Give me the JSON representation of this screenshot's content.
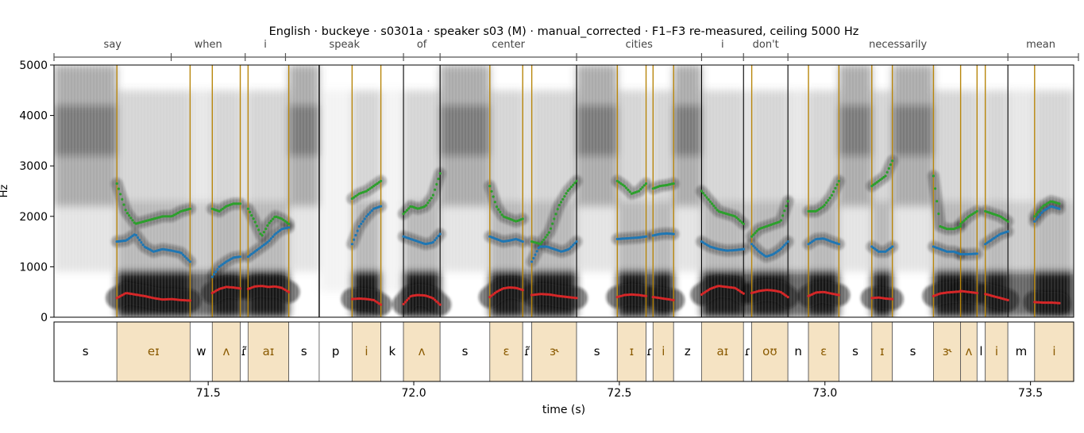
{
  "chart_data": {
    "type": "spectrogram",
    "title": "English · buckeye · s0301a · speaker s03 (M) · manual_corrected · F1–F3 re-measured, ceiling 5000 Hz",
    "xlabel": "time (s)",
    "ylabel": "Hz",
    "xlim": [
      71.125,
      73.605
    ],
    "ylim": [
      0,
      5000
    ],
    "y_ticks": [
      "0",
      "1000",
      "2000",
      "3000",
      "4000",
      "5000"
    ],
    "x_ticks": [
      "71.5",
      "72.0",
      "72.5",
      "73.0",
      "73.5"
    ],
    "x_tick_values": [
      71.5,
      72.0,
      72.5,
      73.0,
      73.5
    ],
    "y_tick_values": [
      0,
      1000,
      2000,
      3000,
      4000,
      5000
    ],
    "words": [
      {
        "label": "say",
        "start": 71.125,
        "end": 71.41
      },
      {
        "label": "when",
        "start": 71.41,
        "end": 71.59
      },
      {
        "label": "i",
        "start": 71.59,
        "end": 71.688
      },
      {
        "label": "speak",
        "start": 71.688,
        "end": 71.975
      },
      {
        "label": "of",
        "start": 71.975,
        "end": 72.064
      },
      {
        "label": "center",
        "start": 72.064,
        "end": 72.396
      },
      {
        "label": "cities",
        "start": 72.396,
        "end": 72.7
      },
      {
        "label": "i",
        "start": 72.7,
        "end": 72.802
      },
      {
        "label": "don't",
        "start": 72.802,
        "end": 72.91
      },
      {
        "label": "necessarily",
        "start": 72.91,
        "end": 73.445
      },
      {
        "label": "mean",
        "start": 73.445,
        "end": 73.605
      }
    ],
    "phones": [
      {
        "label": "s",
        "start": 71.125,
        "end": 71.278,
        "vowel": false
      },
      {
        "label": "eɪ",
        "start": 71.278,
        "end": 71.456,
        "vowel": true
      },
      {
        "label": "w",
        "start": 71.456,
        "end": 71.51,
        "vowel": false
      },
      {
        "label": "ʌ",
        "start": 71.51,
        "end": 71.578,
        "vowel": true
      },
      {
        "label": "ɾ̃",
        "start": 71.578,
        "end": 71.597,
        "vowel": false
      },
      {
        "label": "aɪ",
        "start": 71.597,
        "end": 71.696,
        "vowel": true
      },
      {
        "label": "s",
        "start": 71.696,
        "end": 71.77,
        "vowel": false
      },
      {
        "label": "p",
        "start": 71.77,
        "end": 71.85,
        "vowel": false
      },
      {
        "label": "i",
        "start": 71.85,
        "end": 71.92,
        "vowel": true
      },
      {
        "label": "k",
        "start": 71.92,
        "end": 71.975,
        "vowel": false
      },
      {
        "label": "ʌ",
        "start": 71.975,
        "end": 72.064,
        "vowel": true
      },
      {
        "label": "s",
        "start": 72.064,
        "end": 72.185,
        "vowel": false
      },
      {
        "label": "ɛ",
        "start": 72.185,
        "end": 72.265,
        "vowel": true
      },
      {
        "label": "ɾ̃",
        "start": 72.265,
        "end": 72.287,
        "vowel": false
      },
      {
        "label": "ɝ",
        "start": 72.287,
        "end": 72.396,
        "vowel": true
      },
      {
        "label": "s",
        "start": 72.396,
        "end": 72.495,
        "vowel": false
      },
      {
        "label": "ɪ",
        "start": 72.495,
        "end": 72.565,
        "vowel": true
      },
      {
        "label": "ɾ",
        "start": 72.565,
        "end": 72.582,
        "vowel": false
      },
      {
        "label": "i",
        "start": 72.582,
        "end": 72.632,
        "vowel": true
      },
      {
        "label": "z",
        "start": 72.632,
        "end": 72.7,
        "vowel": false
      },
      {
        "label": "aɪ",
        "start": 72.7,
        "end": 72.802,
        "vowel": true
      },
      {
        "label": "ɾ",
        "start": 72.802,
        "end": 72.822,
        "vowel": false
      },
      {
        "label": "oʊ",
        "start": 72.822,
        "end": 72.91,
        "vowel": true
      },
      {
        "label": "n",
        "start": 72.91,
        "end": 72.96,
        "vowel": false
      },
      {
        "label": "ɛ",
        "start": 72.96,
        "end": 73.034,
        "vowel": true
      },
      {
        "label": "s",
        "start": 73.034,
        "end": 73.114,
        "vowel": false
      },
      {
        "label": "ɪ",
        "start": 73.114,
        "end": 73.164,
        "vowel": true
      },
      {
        "label": "s",
        "start": 73.164,
        "end": 73.264,
        "vowel": false
      },
      {
        "label": "ɝ",
        "start": 73.264,
        "end": 73.33,
        "vowel": true
      },
      {
        "label": "ʌ",
        "start": 73.33,
        "end": 73.37,
        "vowel": true
      },
      {
        "label": "l",
        "start": 73.37,
        "end": 73.39,
        "vowel": false
      },
      {
        "label": "i",
        "start": 73.39,
        "end": 73.445,
        "vowel": true
      },
      {
        "label": "m",
        "start": 73.445,
        "end": 73.51,
        "vowel": false
      },
      {
        "label": "i",
        "start": 73.51,
        "end": 73.605,
        "vowel": true
      }
    ],
    "series": [
      {
        "key": "F1",
        "color": "#d62728",
        "segments": [
          {
            "start": 71.278,
            "end": 71.456,
            "values": [
              380,
              480,
              450,
              420,
              380,
              350,
              360,
              340,
              330
            ]
          },
          {
            "start": 71.51,
            "end": 71.578,
            "values": [
              480,
              560,
              600,
              590,
              570
            ]
          },
          {
            "start": 71.597,
            "end": 71.696,
            "values": [
              560,
              610,
              620,
              600,
              610,
              580,
              500
            ]
          },
          {
            "start": 71.85,
            "end": 71.92,
            "values": [
              360,
              370,
              360,
              340,
              250
            ]
          },
          {
            "start": 71.975,
            "end": 72.064,
            "values": [
              260,
              420,
              440,
              430,
              380,
              250
            ]
          },
          {
            "start": 72.185,
            "end": 72.265,
            "values": [
              400,
              500,
              570,
              590,
              580,
              540
            ]
          },
          {
            "start": 72.287,
            "end": 72.396,
            "values": [
              440,
              460,
              450,
              420,
              400,
              380
            ]
          },
          {
            "start": 72.495,
            "end": 72.565,
            "values": [
              400,
              440,
              450,
              440,
              420
            ]
          },
          {
            "start": 72.582,
            "end": 72.632,
            "values": [
              400,
              380,
              360,
              340
            ]
          },
          {
            "start": 72.7,
            "end": 72.802,
            "values": [
              450,
              560,
              620,
              600,
              580,
              470
            ]
          },
          {
            "start": 72.822,
            "end": 72.91,
            "values": [
              480,
              520,
              540,
              530,
              500,
              400
            ]
          },
          {
            "start": 72.96,
            "end": 73.034,
            "values": [
              420,
              490,
              500,
              470,
              440
            ]
          },
          {
            "start": 73.114,
            "end": 73.164,
            "values": [
              380,
              390,
              370,
              360
            ]
          },
          {
            "start": 73.264,
            "end": 73.33,
            "values": [
              420,
              470,
              490,
              500,
              510
            ]
          },
          {
            "start": 73.33,
            "end": 73.37,
            "values": [
              520,
              500,
              480
            ]
          },
          {
            "start": 73.39,
            "end": 73.445,
            "values": [
              460,
              420,
              380,
              340
            ]
          },
          {
            "start": 73.51,
            "end": 73.57,
            "values": [
              300,
              290,
              290,
              280
            ]
          }
        ]
      },
      {
        "key": "F2",
        "color": "#1f77b4",
        "segments": [
          {
            "start": 71.278,
            "end": 71.456,
            "values": [
              1500,
              1520,
              1650,
              1400,
              1300,
              1350,
              1320,
              1280,
              1100
            ]
          },
          {
            "start": 71.51,
            "end": 71.578,
            "values": [
              800,
              1000,
              1100,
              1180,
              1200
            ]
          },
          {
            "start": 71.597,
            "end": 71.696,
            "values": [
              1200,
              1300,
              1400,
              1500,
              1650,
              1750,
              1780
            ]
          },
          {
            "start": 71.85,
            "end": 71.92,
            "values": [
              1450,
              1800,
              2000,
              2150,
              2200
            ]
          },
          {
            "start": 71.975,
            "end": 72.064,
            "values": [
              1600,
              1550,
              1500,
              1450,
              1480,
              1650
            ]
          },
          {
            "start": 72.185,
            "end": 72.265,
            "values": [
              1600,
              1550,
              1500,
              1520,
              1550,
              1500
            ]
          },
          {
            "start": 72.287,
            "end": 72.396,
            "values": [
              1100,
              1400,
              1400,
              1350,
              1300,
              1350,
              1500
            ]
          },
          {
            "start": 72.495,
            "end": 72.565,
            "values": [
              1550,
              1560,
              1570,
              1580,
              1600
            ]
          },
          {
            "start": 72.582,
            "end": 72.632,
            "values": [
              1620,
              1650,
              1660,
              1650
            ]
          },
          {
            "start": 72.7,
            "end": 72.802,
            "values": [
              1500,
              1400,
              1350,
              1320,
              1330,
              1350
            ]
          },
          {
            "start": 72.822,
            "end": 72.91,
            "values": [
              1450,
              1300,
              1200,
              1250,
              1350,
              1500
            ]
          },
          {
            "start": 72.96,
            "end": 73.034,
            "values": [
              1450,
              1550,
              1560,
              1500,
              1450
            ]
          },
          {
            "start": 73.114,
            "end": 73.164,
            "values": [
              1400,
              1300,
              1300,
              1400
            ]
          },
          {
            "start": 73.264,
            "end": 73.33,
            "values": [
              1400,
              1350,
              1300,
              1300,
              1250
            ]
          },
          {
            "start": 73.33,
            "end": 73.37,
            "values": [
              1250,
              1250,
              1260
            ]
          },
          {
            "start": 73.39,
            "end": 73.445,
            "values": [
              1450,
              1550,
              1650,
              1700
            ]
          },
          {
            "start": 73.51,
            "end": 73.57,
            "values": [
              1900,
              2100,
              2200,
              2150
            ]
          }
        ]
      },
      {
        "key": "F3",
        "color": "#2ca02c",
        "segments": [
          {
            "start": 71.278,
            "end": 71.456,
            "values": [
              2650,
              2100,
              1850,
              1900,
              1950,
              2000,
              2000,
              2100,
              2150
            ]
          },
          {
            "start": 71.51,
            "end": 71.578,
            "values": [
              2150,
              2100,
              2200,
              2250,
              2250
            ]
          },
          {
            "start": 71.597,
            "end": 71.696,
            "values": [
              2150,
              1900,
              1600,
              1850,
              2000,
              1950,
              1850
            ]
          },
          {
            "start": 71.85,
            "end": 71.92,
            "values": [
              2350,
              2450,
              2500,
              2600,
              2700
            ]
          },
          {
            "start": 71.975,
            "end": 72.064,
            "values": [
              2050,
              2200,
              2150,
              2200,
              2400,
              2850
            ]
          },
          {
            "start": 72.185,
            "end": 72.265,
            "values": [
              2600,
              2200,
              2000,
              1950,
              1900,
              1950
            ]
          },
          {
            "start": 72.287,
            "end": 72.396,
            "values": [
              1500,
              1450,
              1700,
              2200,
              2500,
              2700
            ]
          },
          {
            "start": 72.495,
            "end": 72.565,
            "values": [
              2700,
              2600,
              2450,
              2500,
              2650
            ]
          },
          {
            "start": 72.582,
            "end": 72.632,
            "values": [
              2550,
              2600,
              2620,
              2650
            ]
          },
          {
            "start": 72.7,
            "end": 72.802,
            "values": [
              2500,
              2300,
              2100,
              2050,
              2000,
              1850
            ]
          },
          {
            "start": 72.822,
            "end": 72.91,
            "values": [
              1600,
              1750,
              1800,
              1850,
              1900,
              2300
            ]
          },
          {
            "start": 72.96,
            "end": 73.034,
            "values": [
              2100,
              2100,
              2200,
              2400,
              2700
            ]
          },
          {
            "start": 73.114,
            "end": 73.164,
            "values": [
              2600,
              2700,
              2800,
              3100
            ]
          },
          {
            "start": 73.264,
            "end": 73.33,
            "values": [
              2800,
              1800,
              1750,
              1750,
              1800
            ]
          },
          {
            "start": 73.33,
            "end": 73.37,
            "values": [
              1850,
              2000,
              2100
            ]
          },
          {
            "start": 73.39,
            "end": 73.445,
            "values": [
              2100,
              2050,
              2000,
              1900
            ]
          },
          {
            "start": 73.51,
            "end": 73.57,
            "values": [
              2000,
              2200,
              2300,
              2250
            ]
          }
        ]
      }
    ],
    "colors": {
      "vowel_fill": "#f5e3c3",
      "vowel_boundary": "#b8860b",
      "word_boundary": "#000000",
      "bracket": "#555555"
    }
  }
}
